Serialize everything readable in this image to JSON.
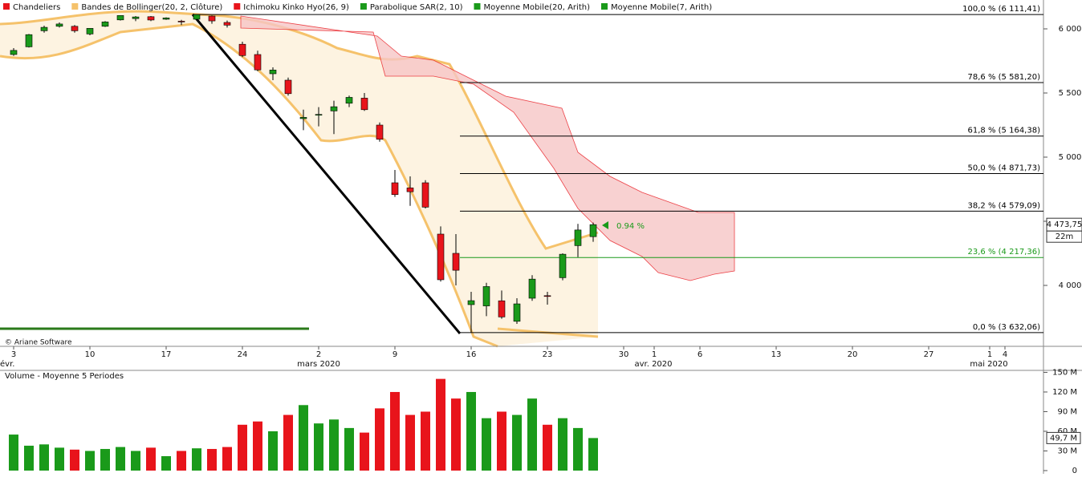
{
  "chart_data": [
    {
      "type": "candlestick",
      "legend": [
        {
          "name": "Chandeliers",
          "color": "#e8141b"
        },
        {
          "name": "Bandes de Bollinger(20, 2, Clôture)",
          "color": "#f5c26b"
        },
        {
          "name": "Ichimoku Kinko Hyo(26, 9)",
          "color": "#e8141b"
        },
        {
          "name": "Parabolique SAR(2, 10)",
          "color": "#1a9a1a"
        },
        {
          "name": "Moyenne Mobile(20, Arith)",
          "color": "#1a9a1a"
        },
        {
          "name": "Moyenne Mobile(7, Arith)",
          "color": "#1a9a1a"
        }
      ],
      "up_color": "#1a9a1a",
      "down_color": "#e8141b",
      "categories": [
        "3",
        null,
        null,
        null,
        null,
        "10",
        null,
        null,
        null,
        null,
        "17",
        null,
        null,
        null,
        null,
        "24",
        null,
        null,
        null,
        null,
        "2",
        null,
        null,
        null,
        null,
        "9",
        null,
        null,
        null,
        null,
        "16",
        null,
        null,
        null,
        null,
        "23",
        null,
        null,
        null,
        null,
        "30",
        null,
        "1",
        null,
        null,
        "6",
        null,
        null,
        null,
        null,
        "13",
        null,
        null,
        null,
        null,
        "20",
        null,
        null,
        null,
        null,
        "27",
        null,
        null,
        null,
        "1",
        "4",
        null
      ],
      "month_labels": [
        "évr.",
        "mars 2020",
        "avr. 2020",
        "mai 2020"
      ],
      "open": [
        5800,
        5860,
        5985,
        6020,
        6020,
        5960,
        6020,
        6070,
        6080,
        6095,
        6075,
        6060,
        6075,
        6100,
        6050,
        5880,
        5800,
        5650,
        5600,
        5300,
        5330,
        5360,
        5420,
        5460,
        5250,
        4800,
        4760,
        4800,
        4400,
        4250,
        3850,
        3840,
        3880,
        3720,
        3900,
        3920,
        4060,
        4310,
        4380,
        null,
        null,
        null,
        null,
        null,
        null,
        null,
        null,
        null,
        null,
        null,
        null,
        null,
        null,
        null,
        null,
        null,
        null,
        null,
        null,
        null,
        null,
        null,
        null,
        null,
        null,
        null,
        null
      ],
      "high": [
        5850,
        5960,
        6025,
        6050,
        6030,
        6005,
        6060,
        6105,
        6100,
        6100,
        6090,
        6070,
        6111.41,
        6105,
        6065,
        5900,
        5830,
        5700,
        5620,
        5370,
        5390,
        5440,
        5480,
        5500,
        5270,
        4900,
        4850,
        4820,
        4460,
        4400,
        3950,
        4020,
        3960,
        3900,
        4080,
        3950,
        4250,
        4480,
        4490,
        null,
        null,
        null,
        null,
        null,
        null,
        null,
        null,
        null,
        null,
        null,
        null,
        null,
        null,
        null,
        null,
        null,
        null,
        null,
        null,
        null,
        null,
        null,
        null,
        null,
        null,
        null,
        null
      ],
      "low": [
        5790,
        5855,
        5970,
        6010,
        5970,
        5950,
        6015,
        6065,
        6060,
        6060,
        6070,
        6030,
        6070,
        6040,
        6010,
        5780,
        5670,
        5600,
        5480,
        5210,
        5240,
        5180,
        5390,
        5360,
        5120,
        4690,
        4620,
        4600,
        4030,
        4000,
        3632.06,
        3760,
        3740,
        3700,
        3880,
        3850,
        4040,
        4220,
        4340,
        null,
        null,
        null,
        null,
        null,
        null,
        null,
        null,
        null,
        null,
        null,
        null,
        null,
        null,
        null,
        null,
        null,
        null,
        null,
        null,
        null,
        null,
        null,
        null,
        null,
        null,
        null,
        null
      ],
      "close": [
        5832,
        5955,
        6012,
        6038,
        5985,
        6004,
        6054,
        6104,
        6093,
        6069,
        6085,
        6057,
        6111,
        6062,
        6029,
        5792,
        5680,
        5679,
        5495,
        5310,
        5333,
        5393,
        5466,
        5370,
        5139,
        4708,
        4730,
        4610,
        4044,
        4118,
        3881,
        3991,
        3754,
        3856,
        4049,
        3914,
        4243,
        4432,
        4473.75,
        null,
        null,
        null,
        null,
        null,
        null,
        null,
        null,
        null,
        null,
        null,
        null,
        null,
        null,
        null,
        null,
        null,
        null,
        null,
        null,
        null,
        null,
        null,
        null,
        null,
        null,
        null,
        null
      ],
      "ylim": [
        3525,
        6225
      ],
      "yticks": [
        {
          "value": 4000,
          "label": "4 000"
        },
        {
          "value": 4500,
          "label": "4 500"
        },
        {
          "value": 5000,
          "label": "5 000"
        },
        {
          "value": 5500,
          "label": "5 500"
        },
        {
          "value": 6000,
          "label": "6 000"
        }
      ],
      "fibonacci": [
        {
          "value": 6111.41,
          "label": "100,0 % (6 111,41)",
          "color": "#000000"
        },
        {
          "value": 5581.2,
          "label": "78,6 % (5 581,20)",
          "color": "#000000"
        },
        {
          "value": 5164.38,
          "label": "61,8 % (5 164,38)",
          "color": "#000000"
        },
        {
          "value": 4871.73,
          "label": "50,0 % (4 871,73)",
          "color": "#000000"
        },
        {
          "value": 4579.09,
          "label": "38,2 % (4 579,09)",
          "color": "#000000"
        },
        {
          "value": 4217.36,
          "label": "23,6 % (4 217,36)",
          "color": "#1a9a1a"
        },
        {
          "value": 3632.06,
          "label": "0,0 % (3 632,06)",
          "color": "#000000"
        }
      ],
      "last_price": {
        "value": 4473.75,
        "label": "4 473,75"
      },
      "time_left": "22m",
      "annotation": "0.94 %",
      "copyright": "© Ariane Software"
    },
    {
      "type": "bar",
      "title": "Volume  - Moyenne 5 Periodes",
      "values": [
        55,
        38,
        40,
        35,
        32,
        30,
        33,
        36,
        30,
        35,
        22,
        30,
        34,
        33,
        36,
        70,
        75,
        60,
        85,
        100,
        72,
        78,
        65,
        58,
        95,
        120,
        85,
        90,
        140,
        110,
        120,
        80,
        90,
        85,
        110,
        70,
        80,
        65,
        49.7,
        null,
        null,
        null,
        null,
        null,
        null,
        null,
        null,
        null,
        null,
        null,
        null,
        null,
        null,
        null,
        null,
        null,
        null,
        null,
        null,
        null,
        null,
        null,
        null,
        null,
        null,
        null,
        null
      ],
      "ylim": [
        0,
        153
      ],
      "yticks": [
        0,
        {
          "value": 30,
          "label": "30 M"
        },
        {
          "value": 60,
          "label": "60 M"
        },
        {
          "value": 90,
          "label": "90 M"
        },
        {
          "value": 120,
          "label": "120 M"
        },
        {
          "value": 150,
          "label": "150 M"
        }
      ],
      "last_value": {
        "value": 49.7,
        "label": "49,7 M"
      }
    }
  ]
}
